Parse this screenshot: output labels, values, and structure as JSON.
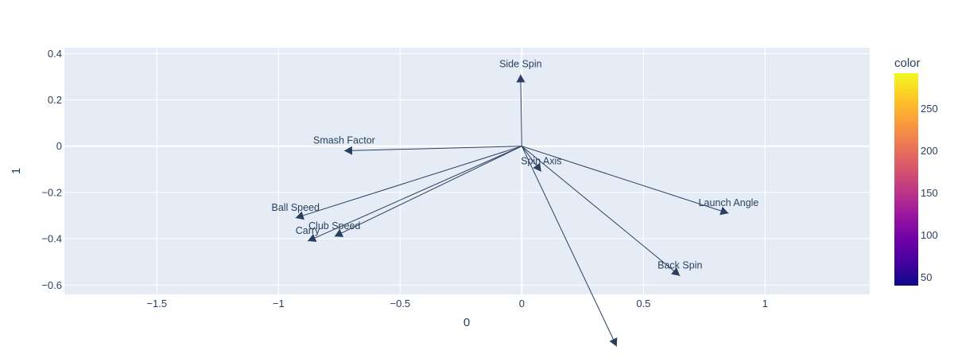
{
  "chart_data": {
    "type": "scatter",
    "subtype": "loading-vectors",
    "title": "",
    "xlabel": "0",
    "ylabel": "1",
    "xlim": [
      -1.88,
      1.43
    ],
    "ylim": [
      -0.64,
      0.425
    ],
    "xticks": [
      -1.5,
      -1,
      -0.5,
      0,
      0.5,
      1
    ],
    "xtick_labels": [
      "−1.5",
      "−1",
      "−0.5",
      "0",
      "0.5",
      "1"
    ],
    "yticks": [
      -0.6,
      -0.4,
      -0.2,
      0,
      0.2,
      0.4
    ],
    "ytick_labels": [
      "−0.6",
      "−0.4",
      "−0.2",
      "0",
      "0.2",
      "0.4"
    ],
    "grid": true,
    "vectors": [
      {
        "name": "Side Spin",
        "x": -0.005,
        "y": 0.31,
        "show_label": true
      },
      {
        "name": "Smash Factor",
        "x": -0.73,
        "y": -0.02,
        "show_label": true
      },
      {
        "name": "Spin Axis",
        "x": 0.08,
        "y": -0.11,
        "show_label": true
      },
      {
        "name": "Launch Angle",
        "x": 0.85,
        "y": -0.29,
        "show_label": true
      },
      {
        "name": "Ball Speed",
        "x": -0.93,
        "y": -0.31,
        "show_label": true
      },
      {
        "name": "Club Speed",
        "x": -0.77,
        "y": -0.39,
        "show_label": true
      },
      {
        "name": "Carry",
        "x": -0.88,
        "y": -0.41,
        "show_label": true
      },
      {
        "name": "Back Spin",
        "x": 0.65,
        "y": -0.56,
        "show_label": true
      },
      {
        "name": "",
        "x": 0.39,
        "y": -0.865,
        "show_label": false
      }
    ],
    "colorbar": {
      "title": "color",
      "min": 40,
      "max": 292,
      "ticks": [
        50,
        100,
        150,
        200,
        250
      ],
      "tick_labels": [
        "50",
        "100",
        "150",
        "200",
        "250"
      ],
      "colorscale": [
        "#0d0887",
        "#46039f",
        "#7201a8",
        "#9c179e",
        "#bd3786",
        "#d8576b",
        "#ed7953",
        "#fb9f3a",
        "#fdca26",
        "#f0f921"
      ]
    },
    "colors": {
      "plot_bg": "#e5ecf6",
      "grid": "#ffffff",
      "arrow": "#2a3f5f",
      "text": "#2a3f5f"
    }
  }
}
